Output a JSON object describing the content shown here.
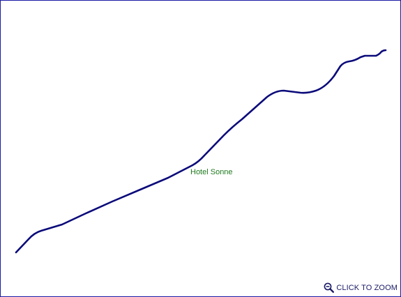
{
  "map": {
    "route_color": "#0a0a7a",
    "label_color": "#1f7a1f",
    "border_color": "#1a1aa6",
    "place_label": "Hotel Sonne"
  },
  "controls": {
    "zoom_label": "CLICK TO ZOOM",
    "zoom_icon": "zoom-out-magnifier-icon"
  }
}
